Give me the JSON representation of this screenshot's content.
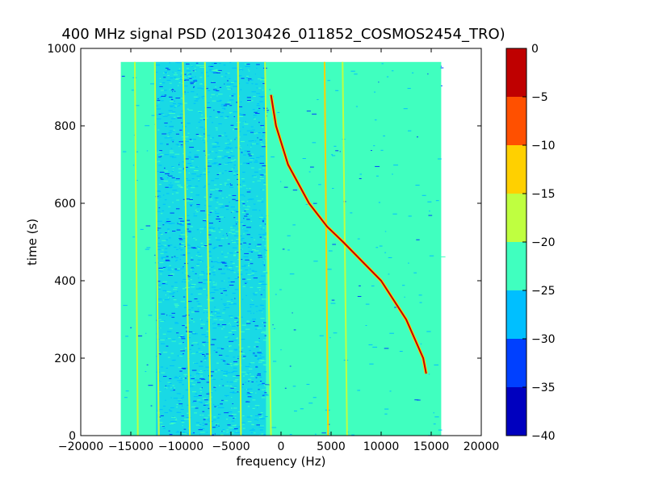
{
  "chart_data": {
    "type": "heatmap",
    "title": "400 MHz signal PSD (20130426_011852_COSMOS2454_TRO)",
    "xlabel": "frequency (Hz)",
    "ylabel": "time (s)",
    "xlim": [
      -20000,
      20000
    ],
    "ylim": [
      0,
      1000
    ],
    "x_ticks": [
      -20000,
      -15000,
      -10000,
      -5000,
      0,
      5000,
      10000,
      15000,
      20000
    ],
    "y_ticks": [
      0,
      200,
      400,
      600,
      800,
      1000
    ],
    "data_extent": {
      "x": [
        -16000,
        16000
      ],
      "y": [
        0,
        965
      ]
    },
    "background_level_db": -22,
    "noise_band": {
      "x": [
        -12500,
        -1500
      ],
      "level_db": -27
    },
    "colorbar": {
      "levels": [
        -40,
        -35,
        -30,
        -25,
        -20,
        -15,
        -10,
        -5,
        0
      ],
      "tick_labels": [
        "0",
        "−5",
        "−10",
        "−15",
        "−20",
        "−25",
        "−30",
        "−35",
        "−40"
      ],
      "colors": [
        "#0000bf",
        "#0040ff",
        "#00bfff",
        "#40ffbf",
        "#bfff40",
        "#ffd000",
        "#ff5000",
        "#bf0000"
      ]
    },
    "vertical_lines": [
      {
        "x": [
          -14600,
          -14300
        ],
        "level_db": -17
      },
      {
        "x": [
          -12600,
          -12200
        ],
        "level_db": -17
      },
      {
        "x": [
          -9800,
          -9100
        ],
        "level_db": -17
      },
      {
        "x": [
          -7600,
          -7000
        ],
        "level_db": -17
      },
      {
        "x": [
          -4300,
          -4000
        ],
        "level_db": -17
      },
      {
        "x": [
          -1600,
          -1000
        ],
        "level_db": -17
      },
      {
        "x": [
          4350,
          4700
        ],
        "level_db": -12
      },
      {
        "x": [
          6150,
          6600
        ],
        "level_db": -17
      }
    ],
    "doppler_curve": {
      "level_db": -3,
      "points": [
        {
          "t": 880,
          "f": -1000
        },
        {
          "t": 800,
          "f": -500
        },
        {
          "t": 700,
          "f": 700
        },
        {
          "t": 600,
          "f": 2800
        },
        {
          "t": 540,
          "f": 4600
        },
        {
          "t": 500,
          "f": 6200
        },
        {
          "t": 400,
          "f": 10000
        },
        {
          "t": 300,
          "f": 12500
        },
        {
          "t": 200,
          "f": 14200
        },
        {
          "t": 160,
          "f": 14500
        }
      ]
    }
  }
}
